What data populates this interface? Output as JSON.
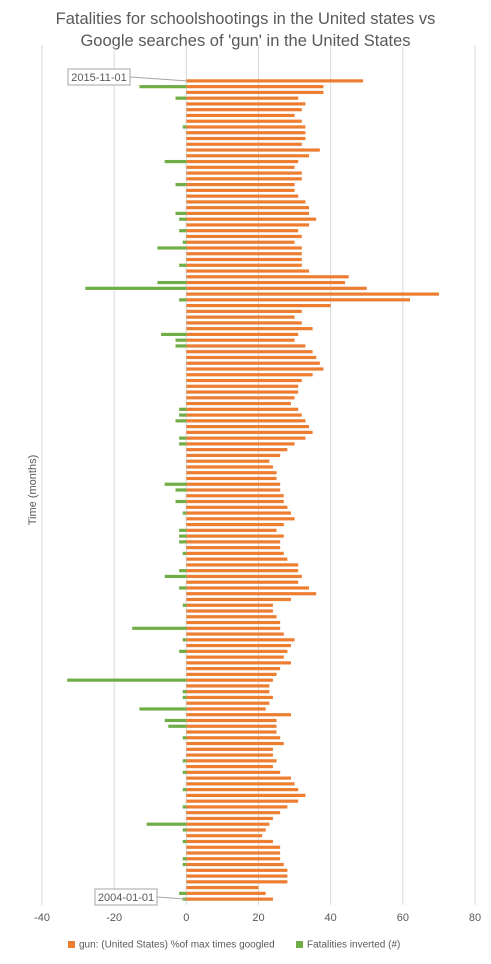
{
  "chart_data": {
    "type": "barh",
    "title": "Fatalities for schoolshootings in the United states vs Google searches of 'gun' in the United States",
    "y_label": "Time (months)",
    "xlim": [
      -40,
      80
    ],
    "xticks": [
      -40,
      -20,
      0,
      20,
      40,
      60,
      80
    ],
    "grid": true,
    "legend": "bottom",
    "categories": [
      "2015-11-01",
      null,
      null,
      null,
      null,
      null,
      null,
      null,
      null,
      null,
      null,
      null,
      null,
      null,
      null,
      null,
      null,
      null,
      null,
      null,
      null,
      null,
      null,
      null,
      null,
      null,
      null,
      null,
      null,
      null,
      null,
      null,
      null,
      null,
      null,
      null,
      null,
      null,
      null,
      null,
      null,
      null,
      null,
      null,
      null,
      null,
      null,
      null,
      null,
      null,
      null,
      null,
      null,
      null,
      null,
      null,
      null,
      null,
      null,
      null,
      null,
      null,
      null,
      null,
      null,
      null,
      null,
      null,
      null,
      null,
      null,
      null,
      null,
      null,
      null,
      null,
      null,
      null,
      null,
      null,
      null,
      null,
      null,
      null,
      null,
      null,
      null,
      null,
      null,
      null,
      null,
      null,
      null,
      null,
      null,
      null,
      null,
      null,
      null,
      null,
      null,
      null,
      null,
      null,
      null,
      null,
      null,
      null,
      null,
      null,
      null,
      null,
      null,
      null,
      null,
      null,
      null,
      null,
      null,
      null,
      null,
      null,
      null,
      null,
      null,
      null,
      null,
      null,
      null,
      null,
      null,
      null,
      null,
      null,
      null,
      null,
      null,
      null,
      null,
      null,
      null,
      null,
      "2004-01-01"
    ],
    "series": [
      {
        "name": "gun: (United States) %of max times googled",
        "color": "#ed7d31",
        "values": [
          49,
          38,
          38,
          31,
          33,
          32,
          30,
          32,
          33,
          33,
          33,
          32,
          37,
          34,
          31,
          30,
          32,
          32,
          30,
          30,
          31,
          33,
          34,
          34,
          36,
          34,
          31,
          32,
          30,
          32,
          32,
          32,
          32,
          34,
          45,
          44,
          50,
          70,
          62,
          40,
          32,
          30,
          32,
          35,
          31,
          30,
          33,
          35,
          36,
          37,
          38,
          35,
          32,
          31,
          31,
          30,
          29,
          31,
          32,
          33,
          34,
          35,
          33,
          30,
          28,
          26,
          23,
          24,
          25,
          25,
          26,
          26,
          27,
          27,
          28,
          29,
          30,
          27,
          25,
          27,
          26,
          26,
          27,
          28,
          31,
          31,
          32,
          31,
          34,
          36,
          29,
          24,
          24,
          25,
          26,
          26,
          27,
          30,
          29,
          28,
          27,
          29,
          26,
          25,
          24,
          23,
          23,
          24,
          23,
          22,
          29,
          25,
          25,
          25,
          26,
          27,
          24,
          24,
          25,
          24,
          26,
          29,
          30,
          31,
          33,
          31,
          28,
          26,
          24,
          23,
          22,
          21,
          24,
          26,
          26,
          26,
          27,
          28,
          28,
          28,
          20,
          22,
          24
        ]
      },
      {
        "name": "Fatalities inverted (#)",
        "color": "#70ad47",
        "values": [
          0,
          -13,
          0,
          -3,
          0,
          0,
          0,
          0,
          -1,
          0,
          0,
          0,
          0,
          0,
          -6,
          0,
          0,
          0,
          -3,
          0,
          0,
          0,
          0,
          -3,
          -2,
          0,
          -2,
          0,
          -1,
          -8,
          0,
          0,
          -2,
          0,
          0,
          -8,
          -28,
          0,
          -2,
          0,
          0,
          0,
          0,
          0,
          -7,
          -3,
          -3,
          0,
          0,
          0,
          0,
          0,
          0,
          0,
          0,
          0,
          0,
          -2,
          -2,
          -3,
          0,
          0,
          -2,
          -2,
          0,
          0,
          0,
          0,
          0,
          0,
          -6,
          -3,
          0,
          -3,
          0,
          -1,
          0,
          0,
          -2,
          -2,
          -2,
          0,
          -1,
          0,
          0,
          -2,
          -6,
          0,
          -2,
          0,
          0,
          -1,
          0,
          0,
          0,
          -15,
          0,
          -1,
          0,
          -2,
          0,
          0,
          0,
          0,
          -33,
          0,
          -1,
          -1,
          0,
          -13,
          0,
          -6,
          -5,
          0,
          -1,
          0,
          0,
          0,
          -1,
          0,
          -1,
          0,
          0,
          -1,
          0,
          0,
          -1,
          0,
          0,
          -11,
          -1,
          0,
          -1,
          0,
          0,
          -1,
          -1,
          0,
          0,
          0,
          0,
          -2,
          -1
        ]
      }
    ]
  }
}
